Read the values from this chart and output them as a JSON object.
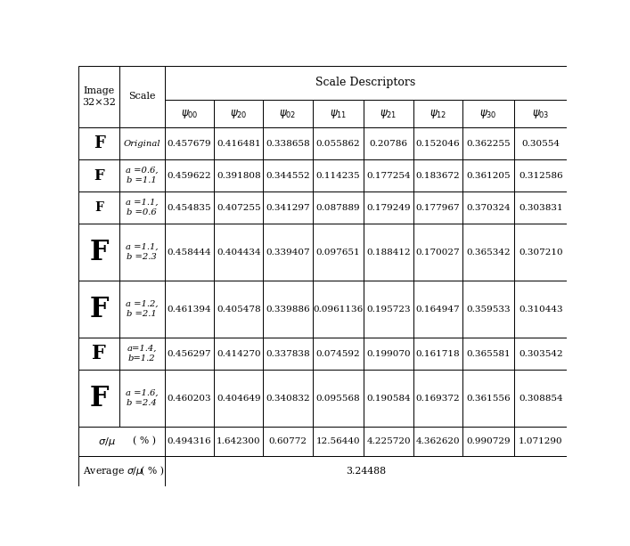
{
  "title": "Scale Descriptors",
  "scale_labels": [
    "Original",
    "a =0.6,\nb =1.1",
    "a =1.1,\nb =0.6",
    "a =1.1,\nb =2.3",
    "a =1.2,\nb =2.1",
    "a=1.4,\nb=1.2",
    "a =1.6,\nb =2.4"
  ],
  "data_rows": [
    [
      "0.457679",
      "0.416481",
      "0.338658",
      "0.055862",
      "0.20786",
      "0.152046",
      "0.362255",
      "0.30554"
    ],
    [
      "0.459622",
      "0.391808",
      "0.344552",
      "0.114235",
      "0.177254",
      "0.183672",
      "0.361205",
      "0.312586"
    ],
    [
      "0.454835",
      "0.407255",
      "0.341297",
      "0.087889",
      "0.179249",
      "0.177967",
      "0.370324",
      "0.303831"
    ],
    [
      "0.458444",
      "0.404434",
      "0.339407",
      "0.097651",
      "0.188412",
      "0.170027",
      "0.365342",
      "0.307210"
    ],
    [
      "0.461394",
      "0.405478",
      "0.339886",
      "0.0961136",
      "0.195723",
      "0.164947",
      "0.359533",
      "0.310443"
    ],
    [
      "0.456297",
      "0.414270",
      "0.337838",
      "0.074592",
      "0.199070",
      "0.161718",
      "0.365581",
      "0.303542"
    ],
    [
      "0.460203",
      "0.404649",
      "0.340832",
      "0.095568",
      "0.190584",
      "0.169372",
      "0.361556",
      "0.308854"
    ]
  ],
  "sigma_row": [
    "0.494316",
    "1.642300",
    "0.60772",
    "12.56440",
    "4.225720",
    "4.362620",
    "0.990729",
    "1.071290"
  ],
  "average": "3.24488",
  "f_sizes": [
    13,
    12,
    10,
    22,
    22,
    16,
    22
  ],
  "background_color": "#ffffff",
  "text_color": "#000000"
}
